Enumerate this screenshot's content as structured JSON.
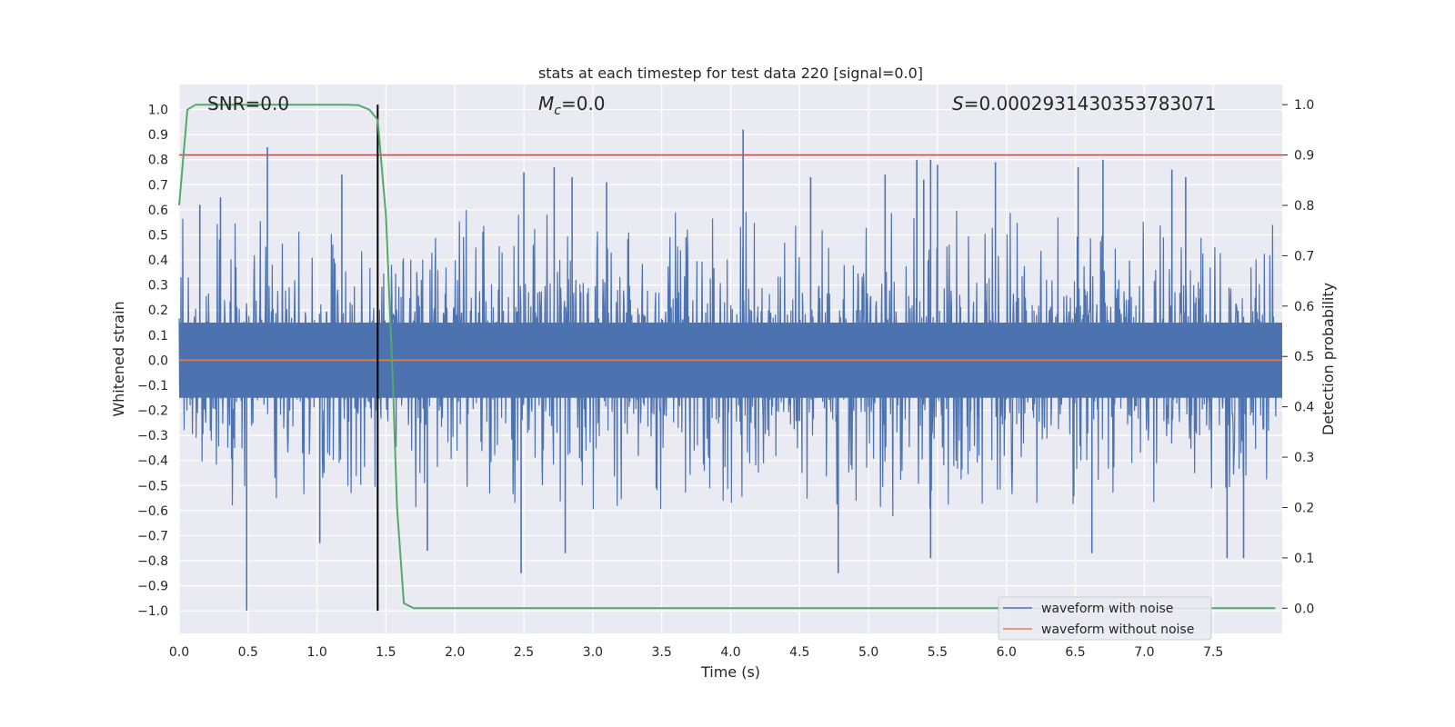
{
  "chart_data": {
    "type": "line",
    "title": "stats at each timestep for test data 220 [signal=0.0]",
    "xlabel": "Time (s)",
    "ylabel": "Whitened strain",
    "y2label": "Detection probability",
    "xlim": [
      0.0,
      8.0
    ],
    "ylim": [
      -1.09,
      1.1
    ],
    "y2lim": [
      -0.05,
      1.04
    ],
    "x_ticks": [
      "0.0",
      "0.5",
      "1.0",
      "1.5",
      "2.0",
      "2.5",
      "3.0",
      "3.5",
      "4.0",
      "4.5",
      "5.0",
      "5.5",
      "6.0",
      "6.5",
      "7.0",
      "7.5"
    ],
    "y_ticks": [
      "1.0",
      "0.9",
      "0.8",
      "0.7",
      "0.6",
      "0.5",
      "0.4",
      "0.3",
      "0.2",
      "0.1",
      "0.0",
      "−0.1",
      "−0.2",
      "−0.3",
      "−0.4",
      "−0.5",
      "−0.6",
      "−0.7",
      "−0.8",
      "−0.9",
      "−1.0"
    ],
    "y2_ticks": [
      "1.0",
      "0.9",
      "0.8",
      "0.7",
      "0.6",
      "0.5",
      "0.4",
      "0.3",
      "0.2",
      "0.1",
      "0.0"
    ],
    "annotations": {
      "snr": "SNR=0.0",
      "mc_symbol": "M",
      "mc_sub": "c",
      "mc_value": "=0.0",
      "s_symbol": "S",
      "s_value": "=0.0002931430353783071"
    },
    "series": [
      {
        "name": "waveform with noise",
        "color": "#4c72b0",
        "envelope": "noise, approximately ±0.45 with spikes to 0.92 and −1.0"
      },
      {
        "name": "waveform without noise",
        "color": "#dd8452",
        "value": 0.0
      },
      {
        "name": "detection probability",
        "color": "#55a868",
        "axis": "right",
        "x": [
          0.0,
          0.06,
          0.12,
          0.2,
          0.4,
          0.8,
          1.2,
          1.3,
          1.38,
          1.44,
          1.5,
          1.55,
          1.58,
          1.63,
          1.7,
          7.95
        ],
        "values": [
          0.8,
          0.99,
          1.0,
          1.0,
          1.0,
          1.0,
          1.0,
          0.999,
          0.99,
          0.97,
          0.78,
          0.45,
          0.2,
          0.01,
          0.0,
          0.0
        ]
      }
    ],
    "threshold": {
      "value": 0.9,
      "axis": "right",
      "color": "#c44e52"
    },
    "vline": {
      "x": 1.44,
      "color": "#000000"
    },
    "spikes": [
      {
        "x": 0.49,
        "v": -1.0
      },
      {
        "x": 0.64,
        "v": 0.85
      },
      {
        "x": 0.3,
        "v": 0.65
      },
      {
        "x": 0.15,
        "v": 0.62
      },
      {
        "x": 1.18,
        "v": 0.74
      },
      {
        "x": 1.02,
        "v": -0.73
      },
      {
        "x": 2.5,
        "v": 0.75
      },
      {
        "x": 2.48,
        "v": -0.85
      },
      {
        "x": 2.72,
        "v": 0.77
      },
      {
        "x": 2.85,
        "v": 0.73
      },
      {
        "x": 1.8,
        "v": -0.76
      },
      {
        "x": 2.8,
        "v": -0.77
      },
      {
        "x": 4.09,
        "v": 0.92
      },
      {
        "x": 4.58,
        "v": 0.73
      },
      {
        "x": 4.78,
        "v": -0.85
      },
      {
        "x": 5.35,
        "v": 0.8
      },
      {
        "x": 5.45,
        "v": 0.8
      },
      {
        "x": 5.5,
        "v": 0.78
      },
      {
        "x": 5.45,
        "v": -0.79
      },
      {
        "x": 5.12,
        "v": 0.74
      },
      {
        "x": 5.4,
        "v": 0.72
      },
      {
        "x": 5.92,
        "v": 0.79
      },
      {
        "x": 6.52,
        "v": 0.77
      },
      {
        "x": 6.62,
        "v": -0.77
      },
      {
        "x": 7.3,
        "v": 0.73
      },
      {
        "x": 7.6,
        "v": -0.79
      },
      {
        "x": 7.72,
        "v": -0.79
      },
      {
        "x": 6.7,
        "v": 0.8
      },
      {
        "x": 7.2,
        "v": 0.76
      },
      {
        "x": 3.1,
        "v": 0.71
      }
    ],
    "legend": {
      "position": "lower-right",
      "entries": [
        "waveform with noise",
        "waveform without noise"
      ]
    }
  }
}
